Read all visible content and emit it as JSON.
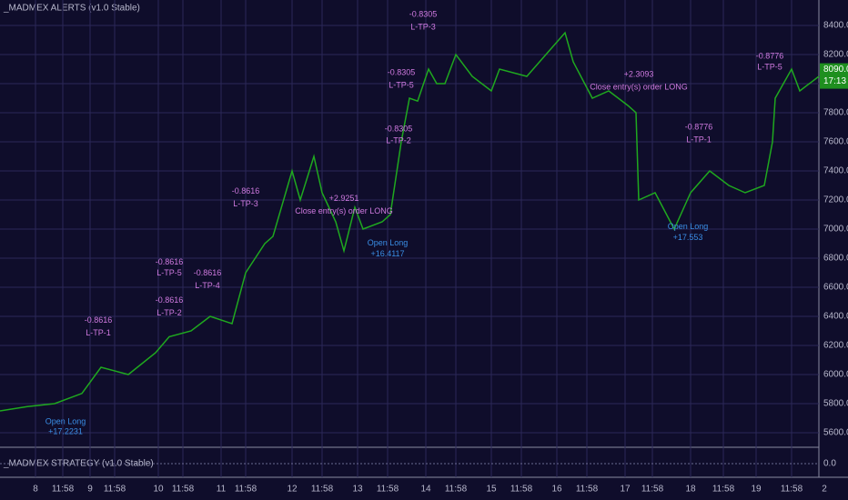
{
  "chart_data": {
    "type": "line",
    "title": "_MADMEX ALERTS (v1.0 Stable)",
    "grid": true,
    "xlim": [
      0,
      310
    ],
    "ylim": [
      5500,
      8575
    ],
    "xticks": [
      {
        "value": 13,
        "label": "8"
      },
      {
        "value": 23,
        "label": "11:58"
      },
      {
        "value": 33,
        "label": "9"
      },
      {
        "value": 42,
        "label": "11:58"
      },
      {
        "value": 58,
        "label": "10"
      },
      {
        "value": 67,
        "label": "11:58"
      },
      {
        "value": 81,
        "label": "11"
      },
      {
        "value": 90,
        "label": "11:58"
      },
      {
        "value": 107,
        "label": "12"
      },
      {
        "value": 118,
        "label": "11:58"
      },
      {
        "value": 131,
        "label": "13"
      },
      {
        "value": 142,
        "label": "11:58"
      },
      {
        "value": 156,
        "label": "14"
      },
      {
        "value": 167,
        "label": "11:58"
      },
      {
        "value": 180,
        "label": "15"
      },
      {
        "value": 191,
        "label": "11:58"
      },
      {
        "value": 204,
        "label": "16"
      },
      {
        "value": 215,
        "label": "11:58"
      },
      {
        "value": 229,
        "label": "17"
      },
      {
        "value": 239,
        "label": "11:58"
      },
      {
        "value": 253,
        "label": "18"
      },
      {
        "value": 265,
        "label": "11:58"
      },
      {
        "value": 277,
        "label": "19"
      },
      {
        "value": 290,
        "label": "11:58"
      },
      {
        "value": 302,
        "label": "2"
      }
    ],
    "yticks": [
      {
        "value": 5600,
        "label": "5600.0"
      },
      {
        "value": 5800,
        "label": "5800.0"
      },
      {
        "value": 6000,
        "label": "6000.0"
      },
      {
        "value": 6200,
        "label": "6200.0"
      },
      {
        "value": 6400,
        "label": "6400.0"
      },
      {
        "value": 6600,
        "label": "6600.0"
      },
      {
        "value": 6800,
        "label": "6800.0"
      },
      {
        "value": 7000,
        "label": "7000.0"
      },
      {
        "value": 7200,
        "label": "7200.0"
      },
      {
        "value": 7400,
        "label": "7400.0"
      },
      {
        "value": 7600,
        "label": "7600.0"
      },
      {
        "value": 7800,
        "label": "7800.0"
      },
      {
        "value": 8000,
        "label": "8000.0"
      },
      {
        "value": 8200,
        "label": "8200.0"
      },
      {
        "value": 8400,
        "label": "8400.0"
      }
    ],
    "series": [
      {
        "color": "#1fa81f",
        "x": [
          0,
          10,
          20,
          30,
          37,
          47,
          57,
          62,
          70,
          77,
          85,
          90,
          97,
          100,
          107,
          110,
          115,
          118,
          123,
          126,
          130,
          133,
          140,
          143,
          147,
          150,
          153,
          157,
          160,
          163,
          167,
          173,
          180,
          183,
          193,
          200,
          207,
          210,
          217,
          223,
          230,
          233,
          234,
          240,
          247,
          253,
          260,
          267,
          273,
          280,
          283,
          284,
          290,
          293,
          300
        ],
        "values": [
          5750,
          5780,
          5800,
          5870,
          6050,
          6000,
          6150,
          6260,
          6300,
          6400,
          6350,
          6700,
          6900,
          6950,
          7400,
          7200,
          7500,
          7250,
          7050,
          6850,
          7150,
          7000,
          7050,
          7100,
          7600,
          7900,
          7880,
          8100,
          8000,
          8000,
          8200,
          8050,
          7950,
          8100,
          8050,
          8200,
          8350,
          8150,
          7900,
          7950,
          7850,
          7800,
          7200,
          7250,
          7000,
          7250,
          7400,
          7300,
          7250,
          7300,
          7600,
          7900,
          8100,
          7950,
          8050
        ]
      }
    ],
    "last_price": {
      "value": 8090,
      "label": "8090.0",
      "countdown": "17:13"
    },
    "annotations": [
      {
        "x": 24,
        "y": 5675,
        "text": "Open Long",
        "color": "#3a8ee6"
      },
      {
        "x": 24,
        "y": 5606,
        "text": "+17.2231",
        "color": "#3a8ee6"
      },
      {
        "x": 36,
        "y": 6370,
        "text": "-0.8616",
        "color": "#d07ae0"
      },
      {
        "x": 36,
        "y": 6283,
        "text": "L-TP-1",
        "color": "#d07ae0"
      },
      {
        "x": 62,
        "y": 6771,
        "text": "-0.8616",
        "color": "#d07ae0"
      },
      {
        "x": 62,
        "y": 6696,
        "text": "L-TP-5",
        "color": "#d07ae0"
      },
      {
        "x": 62,
        "y": 6508,
        "text": "-0.8616",
        "color": "#d07ae0"
      },
      {
        "x": 62,
        "y": 6421,
        "text": "L-TP-2",
        "color": "#d07ae0"
      },
      {
        "x": 76,
        "y": 6696,
        "text": "-0.8616",
        "color": "#d07ae0"
      },
      {
        "x": 76,
        "y": 6609,
        "text": "L-TP-4",
        "color": "#d07ae0"
      },
      {
        "x": 90,
        "y": 7260,
        "text": "-0.8616",
        "color": "#d07ae0"
      },
      {
        "x": 90,
        "y": 7172,
        "text": "L-TP-3",
        "color": "#d07ae0"
      },
      {
        "x": 126,
        "y": 7210,
        "text": "+2.9251",
        "color": "#d07ae0"
      },
      {
        "x": 126,
        "y": 7122,
        "text": "Close entry(s) order LONG",
        "color": "#d07ae0"
      },
      {
        "x": 142,
        "y": 6903,
        "text": "Open Long",
        "color": "#3a8ee6"
      },
      {
        "x": 142,
        "y": 6828,
        "text": "+16.4117",
        "color": "#3a8ee6"
      },
      {
        "x": 155,
        "y": 8475,
        "text": "-0.8305",
        "color": "#d07ae0"
      },
      {
        "x": 155,
        "y": 8387,
        "text": "L-TP-3",
        "color": "#d07ae0"
      },
      {
        "x": 147,
        "y": 8074,
        "text": "-0.8305",
        "color": "#d07ae0"
      },
      {
        "x": 147,
        "y": 7987,
        "text": "L-TP-5",
        "color": "#d07ae0"
      },
      {
        "x": 146,
        "y": 7686,
        "text": "-0.8305",
        "color": "#d07ae0"
      },
      {
        "x": 146,
        "y": 7604,
        "text": "L-TP-2",
        "color": "#d07ae0"
      },
      {
        "x": 234,
        "y": 8062,
        "text": "+2.3093",
        "color": "#d07ae0"
      },
      {
        "x": 234,
        "y": 7974,
        "text": "Close entry(s) order LONG",
        "color": "#d07ae0"
      },
      {
        "x": 256,
        "y": 7698,
        "text": "-0.8776",
        "color": "#d07ae0"
      },
      {
        "x": 256,
        "y": 7611,
        "text": "L-TP-1",
        "color": "#d07ae0"
      },
      {
        "x": 252,
        "y": 7016,
        "text": "Open Long",
        "color": "#3a8ee6"
      },
      {
        "x": 252,
        "y": 6941,
        "text": "+17.553",
        "color": "#3a8ee6"
      },
      {
        "x": 282,
        "y": 8187,
        "text": "-0.8776",
        "color": "#d07ae0"
      },
      {
        "x": 282,
        "y": 8112,
        "text": "L-TP-5",
        "color": "#d07ae0"
      }
    ],
    "strategy_pane": {
      "title": "_MADMEX STRATEGY (v1.0 Stable)",
      "yticks": [
        {
          "value": 0,
          "label": "0.0"
        }
      ]
    }
  }
}
